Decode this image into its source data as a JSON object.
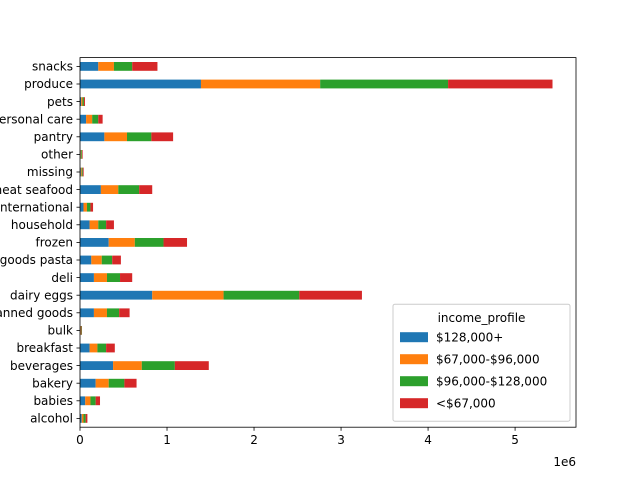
{
  "chart_data": {
    "type": "bar",
    "orientation": "horizontal",
    "stacked": true,
    "categories": [
      "alcohol",
      "babies",
      "bakery",
      "beverages",
      "breakfast",
      "bulk",
      "canned goods",
      "dairy eggs",
      "deli",
      "dry goods pasta",
      "frozen",
      "household",
      "international",
      "meat seafood",
      "missing",
      "other",
      "pantry",
      "personal care",
      "pets",
      "produce",
      "snacks"
    ],
    "series": [
      {
        "name": "$128,000+",
        "color": "#1f77b4",
        "values": [
          20000,
          60000,
          180000,
          380000,
          110000,
          7000,
          160000,
          830000,
          160000,
          130000,
          330000,
          110000,
          40000,
          240000,
          10000,
          8000,
          280000,
          70000,
          14000,
          1390000,
          210000
        ]
      },
      {
        "name": "$67,000-$96,000",
        "color": "#ff7f0e",
        "values": [
          20000,
          60000,
          150000,
          330000,
          90000,
          5000,
          150000,
          820000,
          150000,
          120000,
          300000,
          100000,
          40000,
          200000,
          10000,
          7000,
          260000,
          70000,
          15000,
          1370000,
          180000
        ]
      },
      {
        "name": "$96,000-$128,000",
        "color": "#2ca02c",
        "values": [
          25000,
          60000,
          180000,
          380000,
          100000,
          6000,
          140000,
          870000,
          150000,
          120000,
          330000,
          90000,
          40000,
          240000,
          12000,
          8000,
          280000,
          70000,
          16000,
          1470000,
          210000
        ]
      },
      {
        "name": "<$67,000",
        "color": "#d62728",
        "values": [
          20000,
          50000,
          140000,
          390000,
          100000,
          5000,
          120000,
          720000,
          140000,
          100000,
          270000,
          90000,
          30000,
          150000,
          10000,
          7000,
          250000,
          50000,
          12000,
          1200000,
          290000
        ]
      }
    ],
    "xlim": [
      0,
      5700000
    ],
    "xticks": [
      0,
      1000000,
      2000000,
      3000000,
      4000000,
      5000000
    ],
    "xtick_labels": [
      "0",
      "1",
      "2",
      "3",
      "4",
      "5"
    ],
    "offset_label": "1e6",
    "legend_title": "income_profile",
    "legend_position": "lower right",
    "grid": false
  }
}
